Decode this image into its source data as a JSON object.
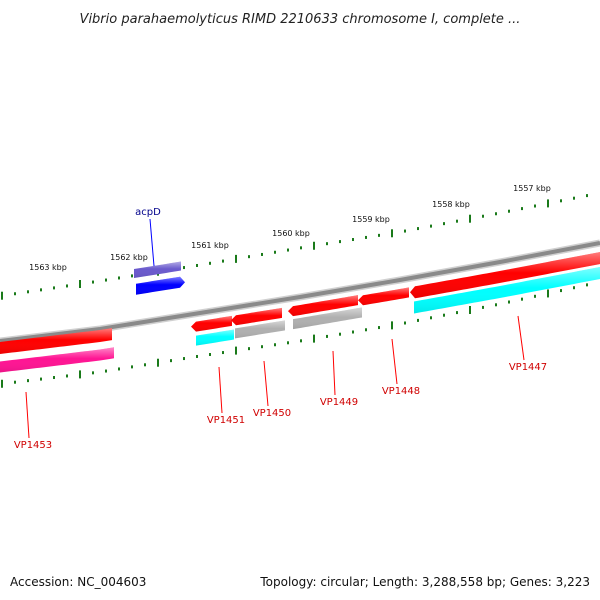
{
  "title": "Vibrio parahaemolyticus RIMD 2210633 chromosome I, complete ...",
  "footer": {
    "accession": "Accession: NC_004603",
    "summary": "Topology: circular; Length: 3,288,558 bp; Genes: 3,223"
  },
  "scale": {
    "unit": "kbp",
    "ticks": [
      {
        "kbp": 1557,
        "label": "1557 kbp"
      },
      {
        "kbp": 1558,
        "label": "1558 kbp"
      },
      {
        "kbp": 1559,
        "label": "1559 kbp"
      },
      {
        "kbp": 1560,
        "label": "1560 kbp"
      },
      {
        "kbp": 1561,
        "label": "1561 kbp"
      },
      {
        "kbp": 1562,
        "label": "1562 kbp"
      },
      {
        "kbp": 1563,
        "label": "1563 kbp"
      }
    ]
  },
  "genes": [
    {
      "name": "acpD",
      "color": "#00008b",
      "feature_color": "#0000ff",
      "strand": "+"
    },
    {
      "name": "VP1447",
      "color": "#d00000",
      "feature_color": "#ff0000",
      "strand": "-"
    },
    {
      "name": "VP1448",
      "color": "#d00000",
      "feature_color": "#ff0000",
      "strand": "-"
    },
    {
      "name": "VP1449",
      "color": "#d00000",
      "feature_color": "#ff0000",
      "strand": "-"
    },
    {
      "name": "VP1450",
      "color": "#d00000",
      "feature_color": "#ff0000",
      "strand": "-"
    },
    {
      "name": "VP1451",
      "color": "#d00000",
      "feature_color": "#ff0000",
      "strand": "-"
    },
    {
      "name": "VP1453",
      "color": "#d00000",
      "feature_color": "#ff0000",
      "strand": "-"
    }
  ],
  "colors": {
    "backbone": "#8a8a8a",
    "tick": "#1a7a1a",
    "cds_forward": "#0000ff",
    "cds_reverse": "#ff0000",
    "cyan_track": "#00ffff",
    "grey_track": "#b0b0b0",
    "magenta_track": "#ff1493",
    "purple_track": "#6a5acd"
  }
}
